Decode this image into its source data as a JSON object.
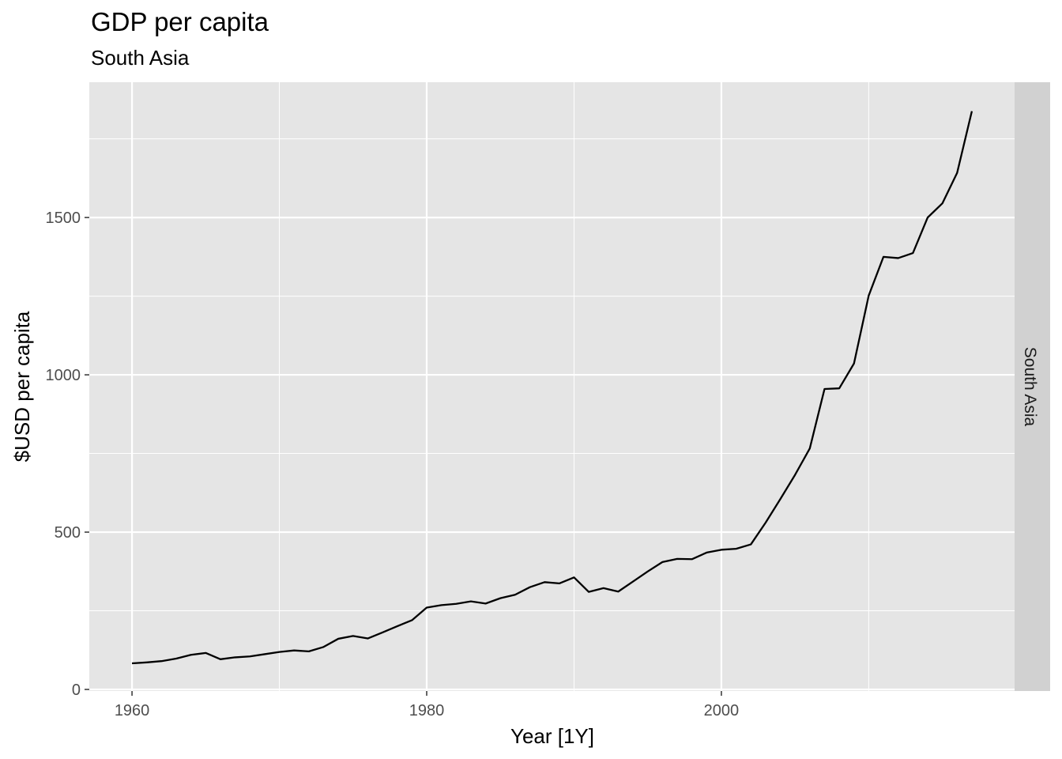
{
  "chart_data": {
    "type": "line",
    "title": "GDP per capita",
    "subtitle": "South Asia",
    "xlabel": "Year [1Y]",
    "ylabel": "$USD per capita",
    "facet_label": "South Asia",
    "xlim": [
      1957.1,
      2019.9
    ],
    "ylim": [
      -5,
      1930
    ],
    "x_ticks": [
      1960,
      1980,
      2000
    ],
    "x_tick_labels": [
      "1960",
      "1980",
      "2000"
    ],
    "x_minor_ticks": [
      1970,
      1990,
      2010
    ],
    "y_ticks": [
      0,
      500,
      1000,
      1500
    ],
    "y_tick_labels": [
      "0",
      "500",
      "1000",
      "1500"
    ],
    "y_minor_ticks": [
      250,
      750,
      1250,
      1750
    ],
    "grid": true,
    "colors": {
      "panel_background": "#e5e5e5",
      "grid_line": "#ffffff",
      "strip_background": "#d1d1d1",
      "series_line": "#000000"
    },
    "series": [
      {
        "x": [
          1960,
          1961,
          1962,
          1963,
          1964,
          1965,
          1966,
          1967,
          1968,
          1969,
          1970,
          1971,
          1972,
          1973,
          1974,
          1975,
          1976,
          1977,
          1978,
          1979,
          1980,
          1981,
          1982,
          1983,
          1984,
          1985,
          1986,
          1987,
          1988,
          1989,
          1990,
          1991,
          1992,
          1993,
          1994,
          1995,
          1996,
          1997,
          1998,
          1999,
          2000,
          2001,
          2002,
          2003,
          2004,
          2005,
          2006,
          2007,
          2008,
          2009,
          2010,
          2011,
          2012,
          2013,
          2014,
          2015,
          2016,
          2017
        ],
        "values": [
          83,
          86,
          90,
          98,
          110,
          116,
          96,
          102,
          105,
          112,
          119,
          124,
          121,
          135,
          161,
          170,
          162,
          181,
          201,
          220,
          260,
          268,
          272,
          280,
          273,
          290,
          301,
          325,
          341,
          337,
          356,
          310,
          322,
          311,
          343,
          375,
          405,
          415,
          414,
          435,
          444,
          447,
          461,
          530,
          605,
          682,
          766,
          955,
          957,
          1036,
          1252,
          1375,
          1371,
          1387,
          1500,
          1545,
          1642,
          1838
        ]
      }
    ]
  }
}
